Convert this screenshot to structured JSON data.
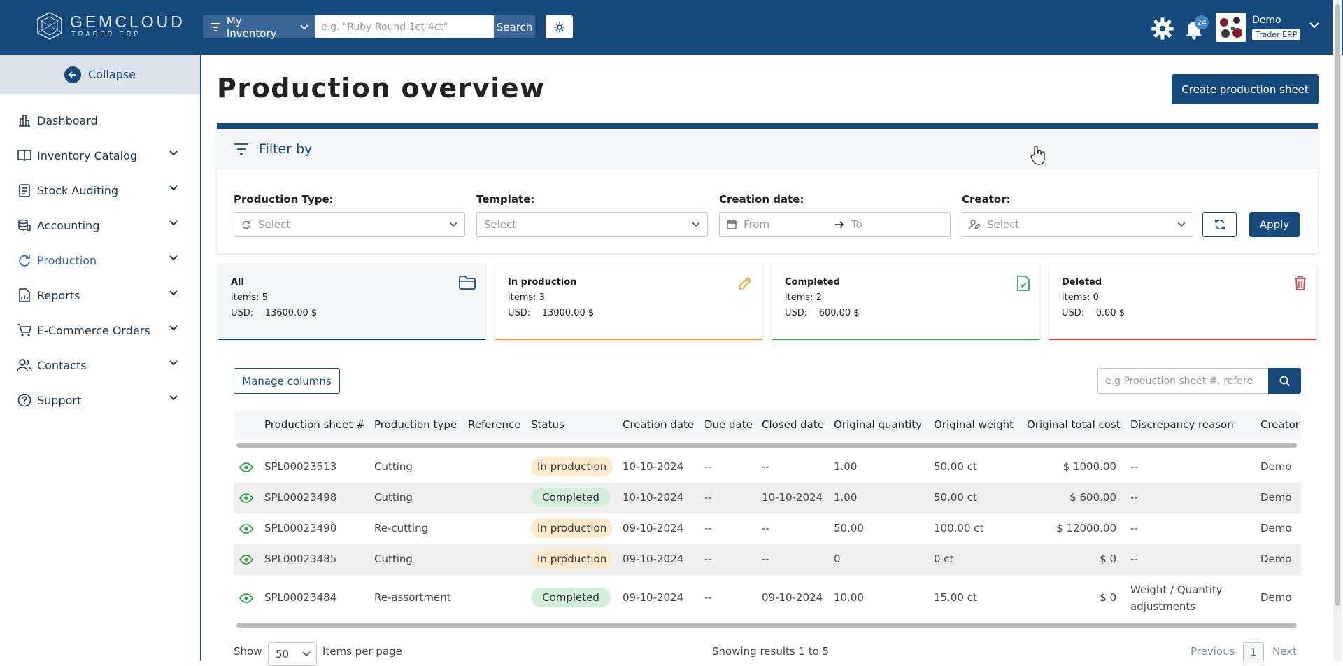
{
  "app": {
    "logo_title": "GEMCLOUD",
    "logo_subtitle": "TRADER ERP"
  },
  "topbar": {
    "scope_label": "My Inventory",
    "search_placeholder": "e.g. \"Ruby Round 1ct-4ct\"",
    "search_button": "Search",
    "notification_count": "24",
    "user_name": "Demo",
    "user_role": "Trader ERP"
  },
  "sidebar": {
    "collapse_label": "Collapse",
    "items": [
      {
        "label": "Dashboard",
        "icon": "chart-bar-icon",
        "expandable": false,
        "active": false
      },
      {
        "label": "Inventory Catalog",
        "icon": "book-icon",
        "expandable": true,
        "active": false
      },
      {
        "label": "Stock Auditing",
        "icon": "clipboard-icon",
        "expandable": true,
        "active": false
      },
      {
        "label": "Accounting",
        "icon": "coins-icon",
        "expandable": true,
        "active": false
      },
      {
        "label": "Production",
        "icon": "refresh-icon",
        "expandable": true,
        "active": true
      },
      {
        "label": "Reports",
        "icon": "report-icon",
        "expandable": true,
        "active": false
      },
      {
        "label": "E-Commerce Orders",
        "icon": "cart-icon",
        "expandable": true,
        "active": false
      },
      {
        "label": "Contacts",
        "icon": "users-icon",
        "expandable": true,
        "active": false
      },
      {
        "label": "Support",
        "icon": "help-icon",
        "expandable": true,
        "active": false
      }
    ]
  },
  "page": {
    "title": "Production overview",
    "create_button": "Create production sheet"
  },
  "filter": {
    "heading": "Filter by",
    "production_type_label": "Production Type:",
    "production_type_placeholder": "Select",
    "template_label": "Template:",
    "template_placeholder": "Select",
    "creation_date_label": "Creation date:",
    "date_from_placeholder": "From",
    "date_to_placeholder": "To",
    "creator_label": "Creator:",
    "creator_placeholder": "Select",
    "apply_button": "Apply"
  },
  "stats": [
    {
      "title": "All",
      "items_label": "items:",
      "items": "5",
      "currency": "USD:",
      "amount": "13600.00 $",
      "color": "#174a7c",
      "icon": "folder-icon"
    },
    {
      "title": "In production",
      "items_label": "items:",
      "items": "3",
      "currency": "USD:",
      "amount": "13000.00 $",
      "color": "#e8a33a",
      "icon": "pencil-icon"
    },
    {
      "title": "Completed",
      "items_label": "items:",
      "items": "2",
      "currency": "USD:",
      "amount": "600.00 $",
      "color": "#3aa55a",
      "icon": "file-check-icon"
    },
    {
      "title": "Deleted",
      "items_label": "items:",
      "items": "0",
      "currency": "USD:",
      "amount": "0.00 $",
      "color": "#e0404a",
      "icon": "trash-icon"
    }
  ],
  "table": {
    "manage_columns": "Manage columns",
    "search_placeholder": "e.g Production sheet #, refere",
    "columns": [
      "Production sheet #",
      "Production type",
      "Reference",
      "Status",
      "Creation date",
      "Due date",
      "Closed date",
      "Original quantity",
      "Original weight",
      "Original total cost",
      "Discrepancy reason",
      "Creator"
    ],
    "rows": [
      {
        "sheet": "SPL00023513",
        "type": "Cutting",
        "reference": "",
        "status": "In production",
        "created": "10-10-2024",
        "due": "--",
        "closed": "--",
        "quantity": "1.00",
        "weight": "50.00 ct",
        "cost": "$ 1000.00",
        "reason": "--",
        "reason2": "",
        "creator": "Demo"
      },
      {
        "sheet": "SPL00023498",
        "type": "Cutting",
        "reference": "",
        "status": "Completed",
        "created": "10-10-2024",
        "due": "--",
        "closed": "10-10-2024",
        "quantity": "1.00",
        "weight": "50.00 ct",
        "cost": "$ 600.00",
        "reason": "--",
        "reason2": "",
        "creator": "Demo"
      },
      {
        "sheet": "SPL00023490",
        "type": "Re-cutting",
        "reference": "",
        "status": "In production",
        "created": "09-10-2024",
        "due": "--",
        "closed": "--",
        "quantity": "50.00",
        "weight": "100.00 ct",
        "cost": "$ 12000.00",
        "reason": "--",
        "reason2": "",
        "creator": "Demo"
      },
      {
        "sheet": "SPL00023485",
        "type": "Cutting",
        "reference": "",
        "status": "In production",
        "created": "09-10-2024",
        "due": "--",
        "closed": "--",
        "quantity": "0",
        "weight": "0 ct",
        "cost": "$ 0",
        "reason": "--",
        "reason2": "",
        "creator": "Demo"
      },
      {
        "sheet": "SPL00023484",
        "type": "Re-assortment",
        "reference": "",
        "status": "Completed",
        "created": "09-10-2024",
        "due": "--",
        "closed": "09-10-2024",
        "quantity": "10.00",
        "weight": "15.00 ct",
        "cost": "$ 0",
        "reason": "Weight / Quantity",
        "reason2": "adjustments",
        "creator": "Demo"
      }
    ]
  },
  "pagination": {
    "show_label": "Show",
    "per_page": "50",
    "per_page_suffix": "Items per page",
    "summary": "Showing results 1 to 5",
    "previous": "Previous",
    "current_page": "1",
    "next": "Next"
  }
}
